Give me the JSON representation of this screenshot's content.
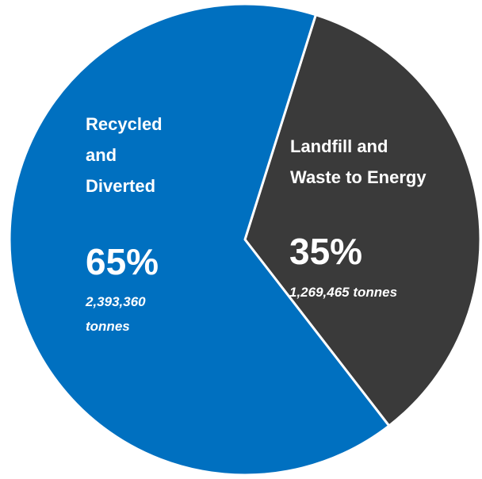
{
  "chart_data": {
    "type": "pie",
    "slices": [
      {
        "label_lines": [
          "Recycled",
          "and",
          "Diverted"
        ],
        "percent_label": "65%",
        "value": 2393360,
        "tonnes_lines": [
          "2,393,360",
          "tonnes"
        ],
        "color": "#0070c0"
      },
      {
        "label_lines": [
          "Landfill and",
          "Waste to Energy"
        ],
        "percent_label": "35%",
        "value": 1269465,
        "tonnes_lines": [
          "1,269,465  tonnes"
        ],
        "color": "#3a3a3a"
      }
    ],
    "slice_border": "#ffffff",
    "legend": "none",
    "start_direction": "top, slightly right, clockwise"
  }
}
